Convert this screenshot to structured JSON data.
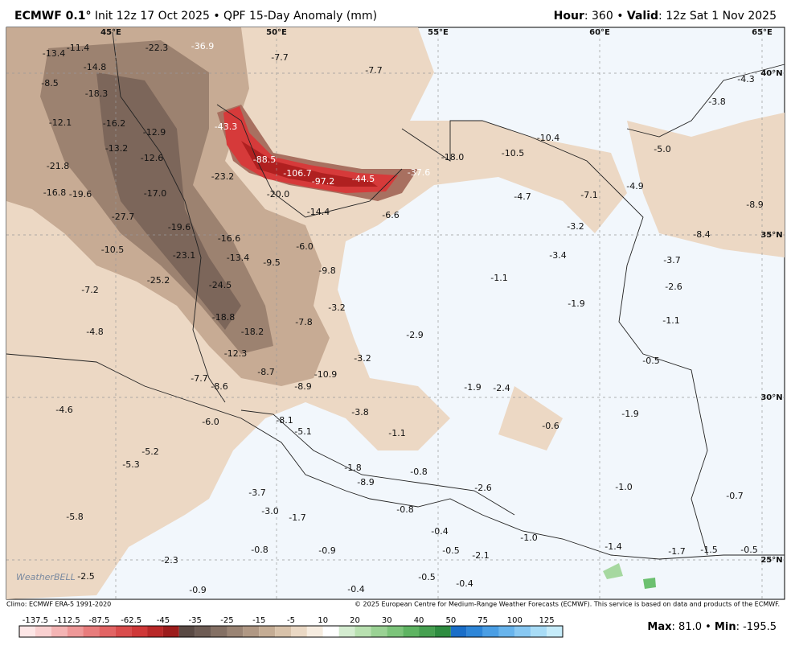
{
  "header": {
    "model": "ECMWF 0.1°",
    "run": " Init 12z 17 Oct 2025 • QPF 15-Day Anomaly (mm)",
    "hour_label": "Hour",
    "hour_value": ": 360 • ",
    "valid_label": "Valid",
    "valid_value": ": 12z Sat 1 Nov 2025"
  },
  "map": {
    "lon_labels": [
      "45°E",
      "50°E",
      "55°E",
      "60°E",
      "65°E"
    ],
    "lat_labels": [
      "40°N",
      "35°N",
      "30°N",
      "25°N"
    ],
    "labels": [
      "-13.4",
      "-11.4",
      "-22.3",
      "-36.9",
      "-7.7",
      "-14.8",
      "-7.7",
      "-4.3",
      "-8.5",
      "-18.3",
      "-3.8",
      "-12.1",
      "-16.2",
      "-43.3",
      "-12.9",
      "-13.2",
      "-10.4",
      "-5.0",
      "-10.5",
      "-18.0",
      "-21.8",
      "-12.6",
      "-88.5",
      "-106.7",
      "-97.2",
      "-44.5",
      "-37.6",
      "-23.2",
      "-4.9",
      "-16.8",
      "-19.6",
      "-17.0",
      "-20.0",
      "-4.7",
      "-7.1",
      "-8.9",
      "-14.4",
      "-6.6",
      "-27.7",
      "-3.2",
      "-19.6",
      "-8.4",
      "-16.6",
      "-6.0",
      "-10.5",
      "-23.1",
      "-13.4",
      "-9.5",
      "-3.4",
      "-3.7",
      "-9.8",
      "-25.2",
      "-1.1",
      "-24.5",
      "-2.6",
      "-7.2",
      "-1.9",
      "-3.2",
      "-18.8",
      "-1.1",
      "-7.8",
      "-4.8",
      "-18.2",
      "-2.9",
      "-12.3",
      "-3.2",
      "-0.5",
      "-8.7",
      "-10.9",
      "-7.7",
      "-8.6",
      "-8.9",
      "-1.9",
      "-2.4",
      "-4.6",
      "-3.8",
      "-1.9",
      "-8.1",
      "-6.0",
      "-0.6",
      "-5.1",
      "-1.1",
      "-5.2",
      "-5.3",
      "-1.8",
      "-0.8",
      "-8.9",
      "-1.0",
      "-2.6",
      "-3.7",
      "-0.7",
      "-3.0",
      "-0.8",
      "-1.7",
      "-5.8",
      "-0.4",
      "-1.0",
      "-1.4",
      "-1.7",
      "-1.5",
      "-0.5",
      "-0.8",
      "-0.9",
      "-0.5",
      "-2.1",
      "-2.3",
      "-2.5",
      "-0.5",
      "-0.4",
      "-0.9",
      "-0.4"
    ],
    "logo": "WeatherBELL"
  },
  "footer": {
    "climo": "Climo: ECMWF ERA-5 1991-2020",
    "copyright": "© 2025 European Centre for Medium-Range Weather Forecasts (ECMWF). This service is based on data and products of the ECMWF.",
    "max_label": "Max",
    "max_value": ": 81.0 • ",
    "min_label": "Min",
    "min_value": ": -195.5"
  },
  "colorbar": {
    "labels": [
      "-137.5",
      "-112.5",
      "-87.5",
      "-62.5",
      "-45",
      "-35",
      "-25",
      "-15",
      "-5",
      "10",
      "20",
      "30",
      "40",
      "50",
      "75",
      "100",
      "125"
    ],
    "colors": [
      "#fde6e6",
      "#f9d0d0",
      "#f4b4b4",
      "#ee9898",
      "#e87c7c",
      "#e26464",
      "#d94c4c",
      "#cf3838",
      "#b82828",
      "#9c1c1c",
      "#5a4a44",
      "#6e5c54",
      "#847064",
      "#9a8474",
      "#b09884",
      "#c4ac94",
      "#d8c2aa",
      "#ead8c4",
      "#f6ece0",
      "#ffffff",
      "#d4ecd0",
      "#b8e0b0",
      "#9ad294",
      "#7cc47a",
      "#5eb462",
      "#46a050",
      "#2e8c40",
      "#1a6ec8",
      "#2e86d8",
      "#4a9ee4",
      "#68b4ec",
      "#88c8f2",
      "#a8dcf6",
      "#c6ecfa"
    ]
  }
}
